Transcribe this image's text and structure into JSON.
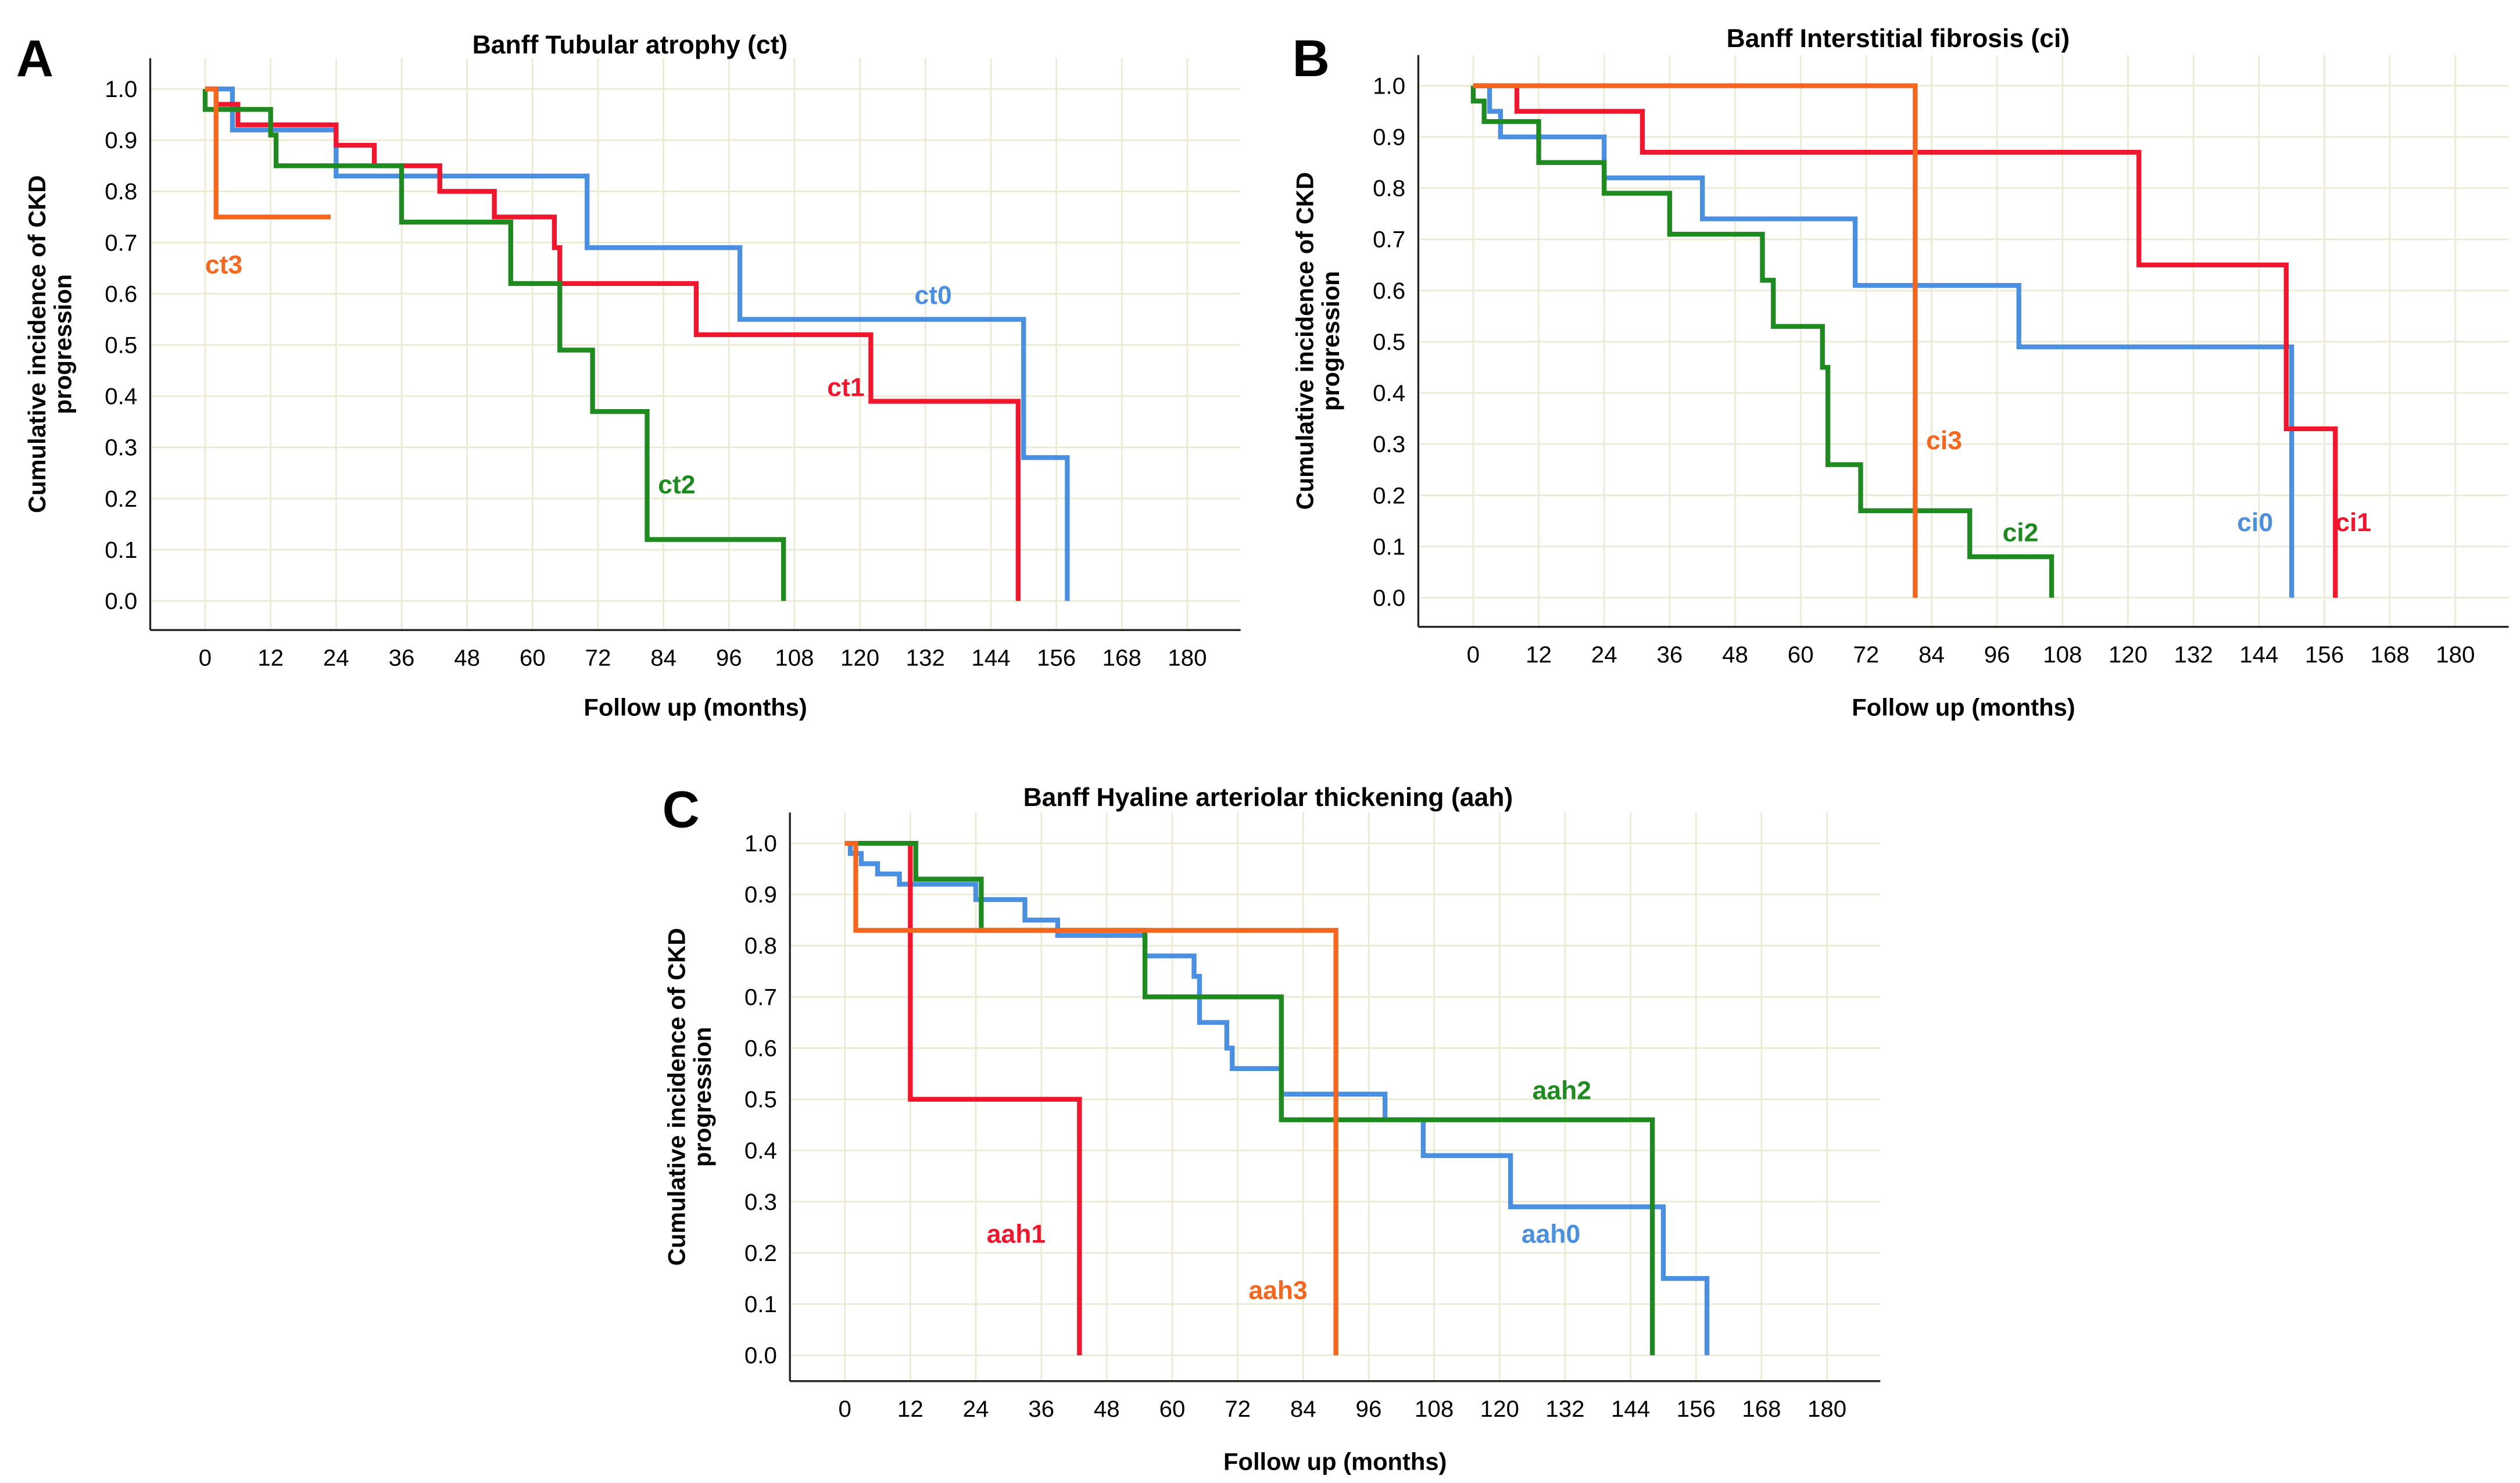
{
  "colors": {
    "blue": "#4a8fe0",
    "red": "#f0162e",
    "green": "#1f8a1f",
    "orange": "#f5661e",
    "grid": "#ece9d4"
  },
  "chart_data": [
    {
      "type": "line",
      "step": true,
      "panel_letter": "A",
      "title": "Banff Tubular atrophy (ct)",
      "xlabel": "Follow up (months)",
      "ylabel": [
        "Cumulative incidence of CKD",
        "progression"
      ],
      "xlim": [
        0,
        180
      ],
      "ylim": [
        0,
        1
      ],
      "xticks": [
        "0",
        "12",
        "24",
        "36",
        "48",
        "60",
        "72",
        "84",
        "96",
        "108",
        "120",
        "132",
        "144",
        "156",
        "168",
        "180"
      ],
      "yticks": [
        "0.0",
        "0.1",
        "0.2",
        "0.3",
        "0.4",
        "0.5",
        "0.6",
        "0.7",
        "0.8",
        "0.9",
        "1.0"
      ],
      "grid": true,
      "series": [
        {
          "name": "ct0",
          "color": "blue",
          "label_at": [
            130,
            0.58
          ],
          "points": [
            [
              0,
              1.0
            ],
            [
              5,
              0.92
            ],
            [
              24,
              0.83
            ],
            [
              70,
              0.69
            ],
            [
              98,
              0.55
            ],
            [
              150,
              0.28
            ],
            [
              158,
              0.0
            ]
          ]
        },
        {
          "name": "ct1",
          "color": "red",
          "label_at": [
            114,
            0.4
          ],
          "points": [
            [
              0,
              1.0
            ],
            [
              2,
              0.97
            ],
            [
              6,
              0.93
            ],
            [
              24,
              0.89
            ],
            [
              31,
              0.85
            ],
            [
              43,
              0.8
            ],
            [
              53,
              0.75
            ],
            [
              64,
              0.69
            ],
            [
              65,
              0.62
            ],
            [
              90,
              0.52
            ],
            [
              122,
              0.39
            ],
            [
              149,
              0.0
            ]
          ]
        },
        {
          "name": "ct2",
          "color": "green",
          "label_at": [
            83,
            0.21
          ],
          "points": [
            [
              0,
              1.0
            ],
            [
              0,
              0.96
            ],
            [
              12,
              0.91
            ],
            [
              13,
              0.85
            ],
            [
              36,
              0.74
            ],
            [
              56,
              0.62
            ],
            [
              65,
              0.49
            ],
            [
              71,
              0.37
            ],
            [
              81,
              0.12
            ],
            [
              106,
              0.0
            ]
          ]
        },
        {
          "name": "ct3",
          "color": "orange",
          "label_at": [
            0,
            0.64
          ],
          "end_censored": 23,
          "points": [
            [
              0,
              1.0
            ],
            [
              2,
              0.75
            ]
          ]
        }
      ]
    },
    {
      "type": "line",
      "step": true,
      "panel_letter": "B",
      "title": "Banff Interstitial fibrosis (ci)",
      "xlabel": "Follow up (months)",
      "ylabel": [
        "Cumulative incidence of CKD",
        "progression"
      ],
      "xlim": [
        0,
        180
      ],
      "ylim": [
        0,
        1
      ],
      "xticks": [
        "0",
        "12",
        "24",
        "36",
        "48",
        "60",
        "72",
        "84",
        "96",
        "108",
        "120",
        "132",
        "144",
        "156",
        "168",
        "180"
      ],
      "yticks": [
        "0.0",
        "0.1",
        "0.2",
        "0.3",
        "0.4",
        "0.5",
        "0.6",
        "0.7",
        "0.8",
        "0.9",
        "1.0"
      ],
      "grid": true,
      "series": [
        {
          "name": "ci0",
          "color": "blue",
          "label_at": [
            140,
            0.13
          ],
          "points": [
            [
              0,
              1.0
            ],
            [
              3,
              0.95
            ],
            [
              5,
              0.9
            ],
            [
              24,
              0.82
            ],
            [
              42,
              0.74
            ],
            [
              70,
              0.61
            ],
            [
              100,
              0.49
            ],
            [
              150,
              0.0
            ]
          ]
        },
        {
          "name": "ci1",
          "color": "red",
          "label_at": [
            158,
            0.13
          ],
          "points": [
            [
              0,
              1.0
            ],
            [
              8,
              0.95
            ],
            [
              31,
              0.87
            ],
            [
              122,
              0.65
            ],
            [
              149,
              0.33
            ],
            [
              158,
              0.0
            ]
          ]
        },
        {
          "name": "ci2",
          "color": "green",
          "label_at": [
            97,
            0.11
          ],
          "points": [
            [
              0,
              1.0
            ],
            [
              0,
              0.97
            ],
            [
              2,
              0.93
            ],
            [
              12,
              0.85
            ],
            [
              24,
              0.79
            ],
            [
              36,
              0.71
            ],
            [
              53,
              0.62
            ],
            [
              55,
              0.53
            ],
            [
              64,
              0.45
            ],
            [
              65,
              0.26
            ],
            [
              71,
              0.17
            ],
            [
              91,
              0.08
            ],
            [
              106,
              0.0
            ]
          ]
        },
        {
          "name": "ci3",
          "color": "orange",
          "label_at": [
            83,
            0.29
          ],
          "points": [
            [
              0,
              1.0
            ],
            [
              81,
              0.0
            ]
          ]
        }
      ]
    },
    {
      "type": "line",
      "step": true,
      "panel_letter": "C",
      "title": "Banff Hyaline arteriolar thickening (aah)",
      "xlabel": "Follow up (months)",
      "ylabel": [
        "Cumulative incidence of CKD",
        "progression"
      ],
      "xlim": [
        0,
        180
      ],
      "ylim": [
        0,
        1
      ],
      "xticks": [
        "0",
        "12",
        "24",
        "36",
        "48",
        "60",
        "72",
        "84",
        "96",
        "108",
        "120",
        "132",
        "144",
        "156",
        "168",
        "180"
      ],
      "yticks": [
        "0.0",
        "0.1",
        "0.2",
        "0.3",
        "0.4",
        "0.5",
        "0.6",
        "0.7",
        "0.8",
        "0.9",
        "1.0"
      ],
      "grid": true,
      "series": [
        {
          "name": "aah0",
          "color": "blue",
          "label_at": [
            124,
            0.22
          ],
          "points": [
            [
              0,
              1.0
            ],
            [
              1,
              0.98
            ],
            [
              3,
              0.96
            ],
            [
              6,
              0.94
            ],
            [
              10,
              0.92
            ],
            [
              24,
              0.89
            ],
            [
              33,
              0.85
            ],
            [
              39,
              0.82
            ],
            [
              55,
              0.78
            ],
            [
              64,
              0.74
            ],
            [
              65,
              0.65
            ],
            [
              70,
              0.6
            ],
            [
              71,
              0.56
            ],
            [
              80,
              0.51
            ],
            [
              99,
              0.46
            ],
            [
              106,
              0.39
            ],
            [
              122,
              0.29
            ],
            [
              150,
              0.15
            ],
            [
              158,
              0.0
            ]
          ]
        },
        {
          "name": "aah1",
          "color": "red",
          "label_at": [
            26,
            0.22
          ],
          "points": [
            [
              0,
              1.0
            ],
            [
              12,
              0.5
            ],
            [
              43,
              0.0
            ]
          ]
        },
        {
          "name": "aah2",
          "color": "green",
          "label_at": [
            126,
            0.5
          ],
          "points": [
            [
              0,
              1.0
            ],
            [
              13,
              0.93
            ],
            [
              25,
              0.83
            ],
            [
              55,
              0.7
            ],
            [
              80,
              0.46
            ],
            [
              148,
              0.0
            ]
          ]
        },
        {
          "name": "aah3",
          "color": "orange",
          "label_at": [
            74,
            0.11
          ],
          "points": [
            [
              0,
              1.0
            ],
            [
              2,
              0.83
            ],
            [
              90,
              0.0
            ]
          ]
        }
      ]
    }
  ]
}
